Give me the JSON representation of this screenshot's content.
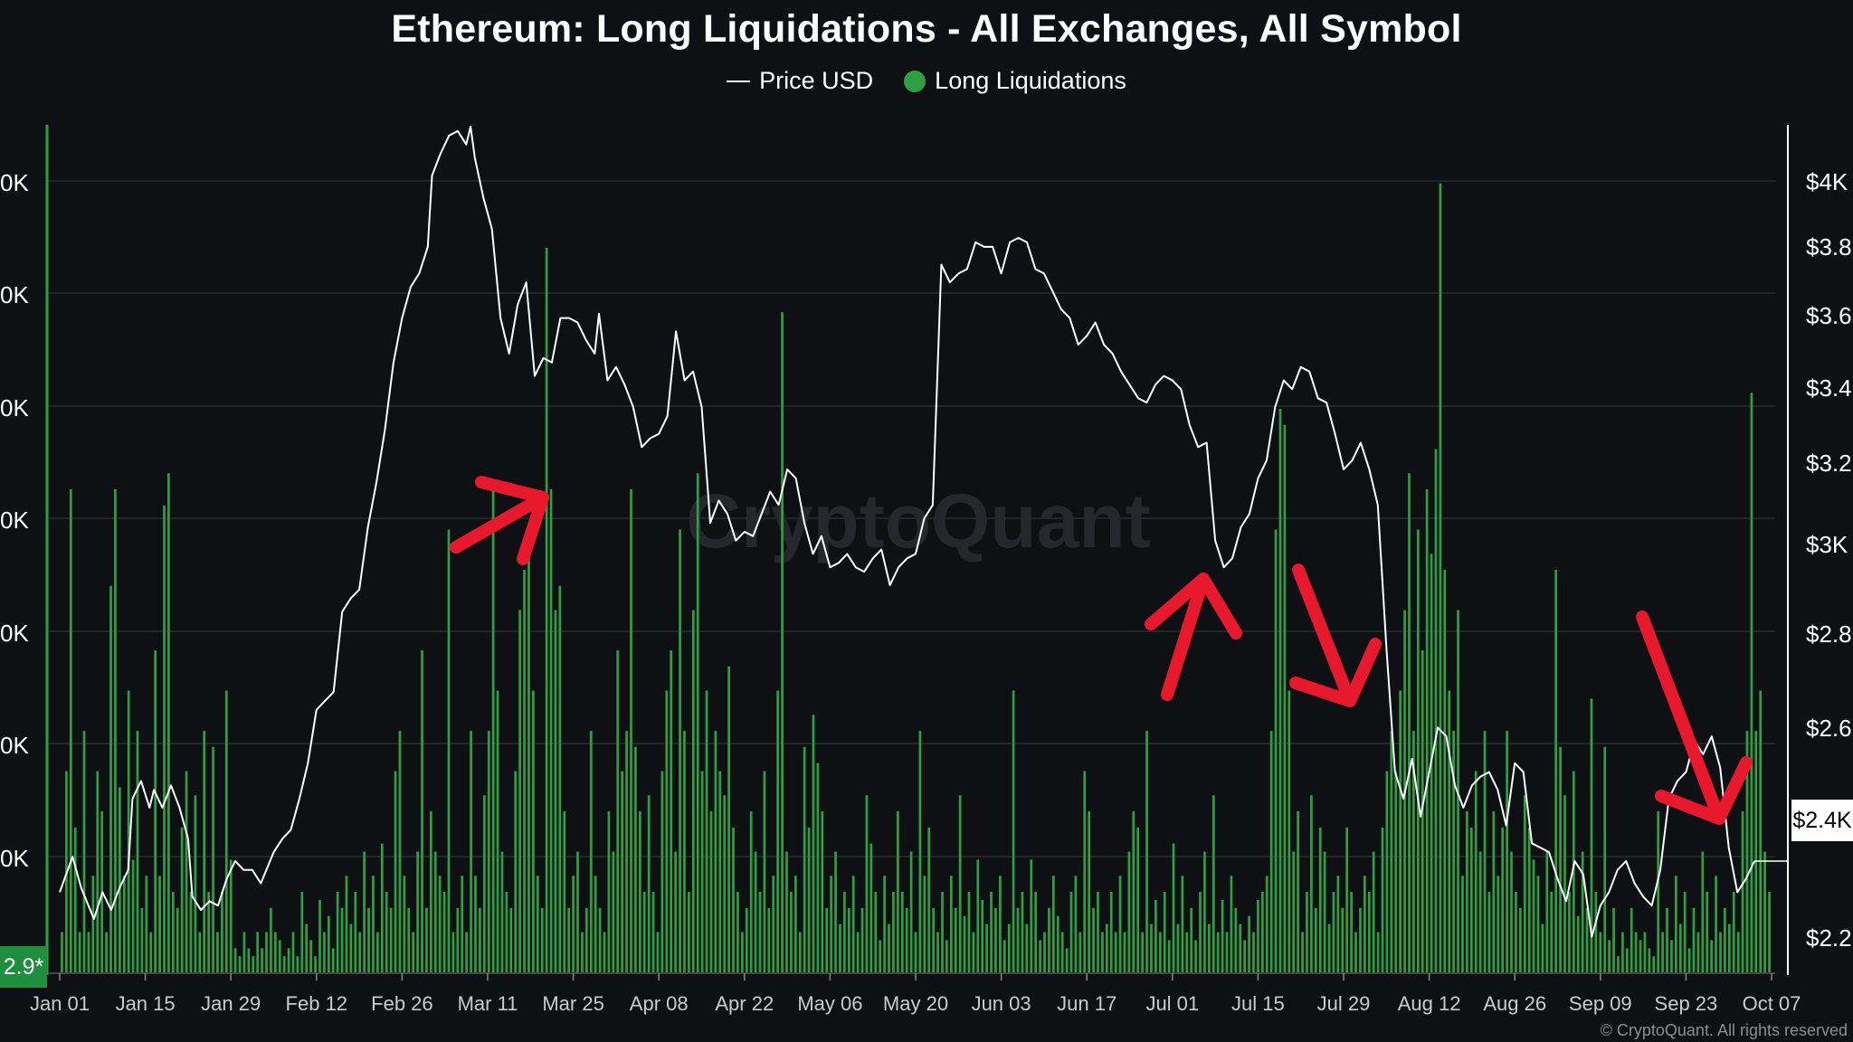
{
  "page": {
    "title": "Ethereum: Long Liquidations - All Exchanges, All Symbol",
    "footer": "© CryptoQuant. All rights reserved",
    "watermark": "CryptoQuant",
    "current_price_badge": "$2.4K",
    "left_value_badge": "2.9*"
  },
  "legend": {
    "price_label": "Price USD",
    "liq_label": "Long Liquidations"
  },
  "colors": {
    "background": "#0f1014",
    "price_line": "#ffffff",
    "bars": "#2ea043",
    "arrows": "#e8192c",
    "grid": "#2a2c31"
  },
  "chart_data": {
    "type": "bar",
    "title": "Ethereum: Long Liquidations - All Exchanges, All Symbol",
    "x_ticks": [
      "Jan 01",
      "Jan 15",
      "Jan 29",
      "Feb 12",
      "Feb 26",
      "Mar 11",
      "Mar 25",
      "Apr 08",
      "Apr 22",
      "May 06",
      "May 20",
      "Jun 03",
      "Jun 17",
      "Jul 01",
      "Jul 15",
      "Jul 29",
      "Aug 12",
      "Aug 26",
      "Sep 09",
      "Sep 23",
      "Oct 07"
    ],
    "left_axis": {
      "tick_labels": [
        "0K",
        "0K",
        "0K",
        "0K",
        "0K",
        "0K",
        "0K"
      ]
    },
    "right_axis": {
      "tick_labels": [
        "$4K",
        "$3.8",
        "$3.6",
        "$3.4",
        "$3.2",
        "$3K",
        "$2.8",
        "$2.6",
        "$2.4K",
        "$2.2"
      ],
      "ylim": [
        2150,
        4050
      ]
    },
    "grid": true,
    "legend_position": "top-center",
    "series": [
      {
        "name": "Price USD",
        "type": "line",
        "points": [
          [
            0,
            2330
          ],
          [
            3,
            2410
          ],
          [
            5,
            2340
          ],
          [
            8,
            2270
          ],
          [
            10,
            2330
          ],
          [
            12,
            2290
          ],
          [
            14,
            2340
          ],
          [
            16,
            2380
          ],
          [
            17,
            2540
          ],
          [
            19,
            2580
          ],
          [
            21,
            2520
          ],
          [
            22,
            2560
          ],
          [
            24,
            2520
          ],
          [
            26,
            2570
          ],
          [
            28,
            2520
          ],
          [
            30,
            2450
          ],
          [
            31,
            2320
          ],
          [
            33,
            2290
          ],
          [
            35,
            2310
          ],
          [
            37,
            2300
          ],
          [
            39,
            2360
          ],
          [
            41,
            2400
          ],
          [
            43,
            2380
          ],
          [
            45,
            2380
          ],
          [
            47,
            2350
          ],
          [
            50,
            2420
          ],
          [
            52,
            2450
          ],
          [
            54,
            2470
          ],
          [
            56,
            2540
          ],
          [
            58,
            2620
          ],
          [
            60,
            2740
          ],
          [
            62,
            2760
          ],
          [
            64,
            2780
          ],
          [
            66,
            2960
          ],
          [
            68,
            2990
          ],
          [
            70,
            3010
          ],
          [
            72,
            3150
          ],
          [
            74,
            3250
          ],
          [
            76,
            3370
          ],
          [
            78,
            3520
          ],
          [
            80,
            3620
          ],
          [
            82,
            3690
          ],
          [
            84,
            3720
          ],
          [
            86,
            3780
          ],
          [
            87,
            3940
          ],
          [
            89,
            3990
          ],
          [
            91,
            4030
          ],
          [
            93,
            4040
          ],
          [
            95,
            4010
          ],
          [
            96,
            4050
          ],
          [
            97,
            3980
          ],
          [
            99,
            3890
          ],
          [
            101,
            3820
          ],
          [
            103,
            3620
          ],
          [
            105,
            3540
          ],
          [
            107,
            3650
          ],
          [
            109,
            3700
          ],
          [
            111,
            3490
          ],
          [
            113,
            3530
          ],
          [
            115,
            3520
          ],
          [
            117,
            3620
          ],
          [
            119,
            3620
          ],
          [
            121,
            3610
          ],
          [
            123,
            3570
          ],
          [
            125,
            3540
          ],
          [
            126,
            3630
          ],
          [
            128,
            3480
          ],
          [
            130,
            3510
          ],
          [
            132,
            3470
          ],
          [
            134,
            3420
          ],
          [
            136,
            3330
          ],
          [
            138,
            3350
          ],
          [
            140,
            3360
          ],
          [
            142,
            3400
          ],
          [
            144,
            3590
          ],
          [
            146,
            3480
          ],
          [
            148,
            3500
          ],
          [
            150,
            3420
          ],
          [
            152,
            3160
          ],
          [
            154,
            3210
          ],
          [
            156,
            3180
          ],
          [
            158,
            3120
          ],
          [
            160,
            3140
          ],
          [
            162,
            3130
          ],
          [
            164,
            3180
          ],
          [
            166,
            3230
          ],
          [
            168,
            3200
          ],
          [
            170,
            3280
          ],
          [
            172,
            3260
          ],
          [
            174,
            3160
          ],
          [
            176,
            3090
          ],
          [
            178,
            3130
          ],
          [
            180,
            3060
          ],
          [
            182,
            3070
          ],
          [
            184,
            3090
          ],
          [
            186,
            3060
          ],
          [
            188,
            3050
          ],
          [
            190,
            3080
          ],
          [
            192,
            3100
          ],
          [
            194,
            3020
          ],
          [
            196,
            3060
          ],
          [
            198,
            3080
          ],
          [
            200,
            3090
          ],
          [
            202,
            3170
          ],
          [
            204,
            3200
          ],
          [
            206,
            3740
          ],
          [
            208,
            3700
          ],
          [
            210,
            3720
          ],
          [
            212,
            3730
          ],
          [
            214,
            3790
          ],
          [
            216,
            3780
          ],
          [
            218,
            3780
          ],
          [
            220,
            3720
          ],
          [
            222,
            3790
          ],
          [
            224,
            3800
          ],
          [
            226,
            3790
          ],
          [
            228,
            3730
          ],
          [
            230,
            3720
          ],
          [
            232,
            3680
          ],
          [
            234,
            3640
          ],
          [
            236,
            3620
          ],
          [
            238,
            3560
          ],
          [
            240,
            3580
          ],
          [
            242,
            3610
          ],
          [
            244,
            3560
          ],
          [
            246,
            3540
          ],
          [
            248,
            3500
          ],
          [
            250,
            3470
          ],
          [
            252,
            3440
          ],
          [
            254,
            3430
          ],
          [
            256,
            3470
          ],
          [
            258,
            3490
          ],
          [
            260,
            3480
          ],
          [
            262,
            3460
          ],
          [
            264,
            3380
          ],
          [
            266,
            3330
          ],
          [
            268,
            3340
          ],
          [
            270,
            3120
          ],
          [
            272,
            3060
          ],
          [
            274,
            3080
          ],
          [
            276,
            3150
          ],
          [
            278,
            3180
          ],
          [
            280,
            3260
          ],
          [
            282,
            3300
          ],
          [
            284,
            3420
          ],
          [
            286,
            3480
          ],
          [
            288,
            3460
          ],
          [
            290,
            3510
          ],
          [
            292,
            3500
          ],
          [
            294,
            3440
          ],
          [
            296,
            3430
          ],
          [
            298,
            3360
          ],
          [
            300,
            3280
          ],
          [
            302,
            3300
          ],
          [
            304,
            3340
          ],
          [
            306,
            3280
          ],
          [
            308,
            3200
          ],
          [
            310,
            2880
          ],
          [
            312,
            2600
          ],
          [
            314,
            2540
          ],
          [
            316,
            2630
          ],
          [
            318,
            2500
          ],
          [
            320,
            2600
          ],
          [
            322,
            2700
          ],
          [
            324,
            2680
          ],
          [
            326,
            2570
          ],
          [
            328,
            2520
          ],
          [
            330,
            2570
          ],
          [
            332,
            2590
          ],
          [
            334,
            2600
          ],
          [
            336,
            2560
          ],
          [
            338,
            2480
          ],
          [
            340,
            2620
          ],
          [
            342,
            2600
          ],
          [
            344,
            2440
          ],
          [
            346,
            2430
          ],
          [
            348,
            2420
          ],
          [
            350,
            2360
          ],
          [
            352,
            2310
          ],
          [
            354,
            2400
          ],
          [
            356,
            2370
          ],
          [
            358,
            2230
          ],
          [
            360,
            2300
          ],
          [
            362,
            2330
          ],
          [
            364,
            2380
          ],
          [
            366,
            2400
          ],
          [
            368,
            2350
          ],
          [
            370,
            2320
          ],
          [
            372,
            2300
          ],
          [
            374,
            2380
          ],
          [
            376,
            2540
          ],
          [
            378,
            2580
          ],
          [
            380,
            2600
          ],
          [
            382,
            2670
          ],
          [
            384,
            2640
          ],
          [
            386,
            2680
          ],
          [
            388,
            2610
          ],
          [
            390,
            2430
          ],
          [
            392,
            2330
          ],
          [
            394,
            2360
          ],
          [
            396,
            2400
          ]
        ]
      },
      {
        "name": "Long Liquidations",
        "type": "bar",
        "values_note_scale": "relative",
        "values": [
          0.05,
          0.25,
          0.6,
          0.18,
          0.05,
          0.3,
          0.05,
          0.12,
          0.25,
          0.2,
          0.05,
          0.48,
          0.6,
          0.23,
          0.12,
          0.35,
          0.14,
          0.3,
          0.08,
          0.12,
          0.05,
          0.4,
          0.12,
          0.58,
          0.62,
          0.1,
          0.08,
          0.18,
          0.25,
          0.1,
          0.22,
          0.05,
          0.3,
          0.1,
          0.28,
          0.05,
          0.1,
          0.35,
          0.14,
          0.03,
          0.02,
          0.05,
          0.03,
          0.02,
          0.05,
          0.03,
          0.05,
          0.08,
          0.05,
          0.04,
          0.02,
          0.03,
          0.05,
          0.02,
          0.1,
          0.06,
          0.04,
          0.02,
          0.09,
          0.05,
          0.07,
          0.03,
          0.1,
          0.08,
          0.12,
          0.06,
          0.1,
          0.05,
          0.15,
          0.08,
          0.12,
          0.05,
          0.16,
          0.1,
          0.08,
          0.25,
          0.3,
          0.12,
          0.08,
          0.05,
          0.15,
          0.4,
          0.08,
          0.2,
          0.15,
          0.12,
          0.1,
          0.55,
          0.05,
          0.08,
          0.12,
          0.05,
          0.3,
          0.12,
          0.08,
          0.22,
          0.3,
          0.6,
          0.35,
          0.15,
          0.1,
          0.08,
          0.25,
          0.45,
          0.5,
          0.55,
          0.35,
          0.12,
          0.08,
          0.9,
          0.6,
          0.45,
          0.48,
          0.2,
          0.08,
          0.12,
          0.15,
          0.05,
          0.08,
          0.3,
          0.12,
          0.08,
          0.05,
          0.2,
          0.15,
          0.4,
          0.25,
          0.3,
          0.6,
          0.28,
          0.2,
          0.1,
          0.22,
          0.1,
          0.05,
          0.25,
          0.35,
          0.4,
          0.15,
          0.55,
          0.3,
          0.1,
          0.45,
          0.62,
          0.25,
          0.35,
          0.2,
          0.3,
          0.25,
          0.22,
          0.38,
          0.18,
          0.1,
          0.05,
          0.08,
          0.2,
          0.15,
          0.1,
          0.25,
          0.08,
          0.12,
          0.35,
          0.82,
          0.15,
          0.1,
          0.12,
          0.05,
          0.28,
          0.18,
          0.32,
          0.26,
          0.2,
          0.08,
          0.12,
          0.15,
          0.06,
          0.1,
          0.08,
          0.12,
          0.05,
          0.08,
          0.22,
          0.16,
          0.1,
          0.04,
          0.12,
          0.06,
          0.1,
          0.2,
          0.1,
          0.08,
          0.15,
          0.05,
          0.3,
          0.12,
          0.18,
          0.08,
          0.05,
          0.1,
          0.04,
          0.12,
          0.08,
          0.22,
          0.07,
          0.1,
          0.05,
          0.14,
          0.09,
          0.06,
          0.1,
          0.08,
          0.12,
          0.04,
          0.06,
          0.35,
          0.08,
          0.1,
          0.06,
          0.14,
          0.1,
          0.04,
          0.05,
          0.08,
          0.12,
          0.07,
          0.05,
          0.03,
          0.1,
          0.12,
          0.05,
          0.25,
          0.2,
          0.08,
          0.1,
          0.05,
          0.06,
          0.1,
          0.05,
          0.12,
          0.05,
          0.15,
          0.2,
          0.18,
          0.05,
          0.3,
          0.06,
          0.09,
          0.05,
          0.1,
          0.04,
          0.16,
          0.06,
          0.12,
          0.05,
          0.08,
          0.04,
          0.1,
          0.15,
          0.06,
          0.22,
          0.05,
          0.09,
          0.05,
          0.12,
          0.08,
          0.06,
          0.04,
          0.07,
          0.05,
          0.09,
          0.1,
          0.12,
          0.3,
          0.55,
          0.7,
          0.68,
          0.35,
          0.15,
          0.2,
          0.05,
          0.1,
          0.22,
          0.08,
          0.18,
          0.15,
          0.06,
          0.1,
          0.12,
          0.08,
          0.18,
          0.1,
          0.05,
          0.08,
          0.12,
          0.1,
          0.15,
          0.05,
          0.18,
          0.25,
          0.3,
          0.25,
          0.35,
          0.45,
          0.62,
          0.3,
          0.55,
          0.4,
          0.6,
          0.52,
          0.65,
          0.98,
          0.5,
          0.35,
          0.3,
          0.45,
          0.12,
          0.2,
          0.18,
          0.25,
          0.15,
          0.3,
          0.1,
          0.2,
          0.12,
          0.18,
          0.3,
          0.15,
          0.1,
          0.08,
          0.22,
          0.18,
          0.14,
          0.12,
          0.06,
          0.15,
          0.1,
          0.5,
          0.28,
          0.22,
          0.1,
          0.25,
          0.07,
          0.15,
          0.08,
          0.34,
          0.1,
          0.05,
          0.28,
          0.04,
          0.08,
          0.02,
          0.05,
          0.03,
          0.08,
          0.05,
          0.04,
          0.05,
          0.03,
          0.02,
          0.2,
          0.05,
          0.08,
          0.04,
          0.12,
          0.06,
          0.1,
          0.03,
          0.08,
          0.05,
          0.15,
          0.1,
          0.04,
          0.12,
          0.05,
          0.08,
          0.06,
          0.1,
          0.05,
          0.2,
          0.3,
          0.72,
          0.3,
          0.35,
          0.15,
          0.1
        ]
      }
    ],
    "annotations": [
      "arrow-up-right",
      "arrow-up-right",
      "arrow-down-right",
      "arrow-down-right"
    ]
  }
}
